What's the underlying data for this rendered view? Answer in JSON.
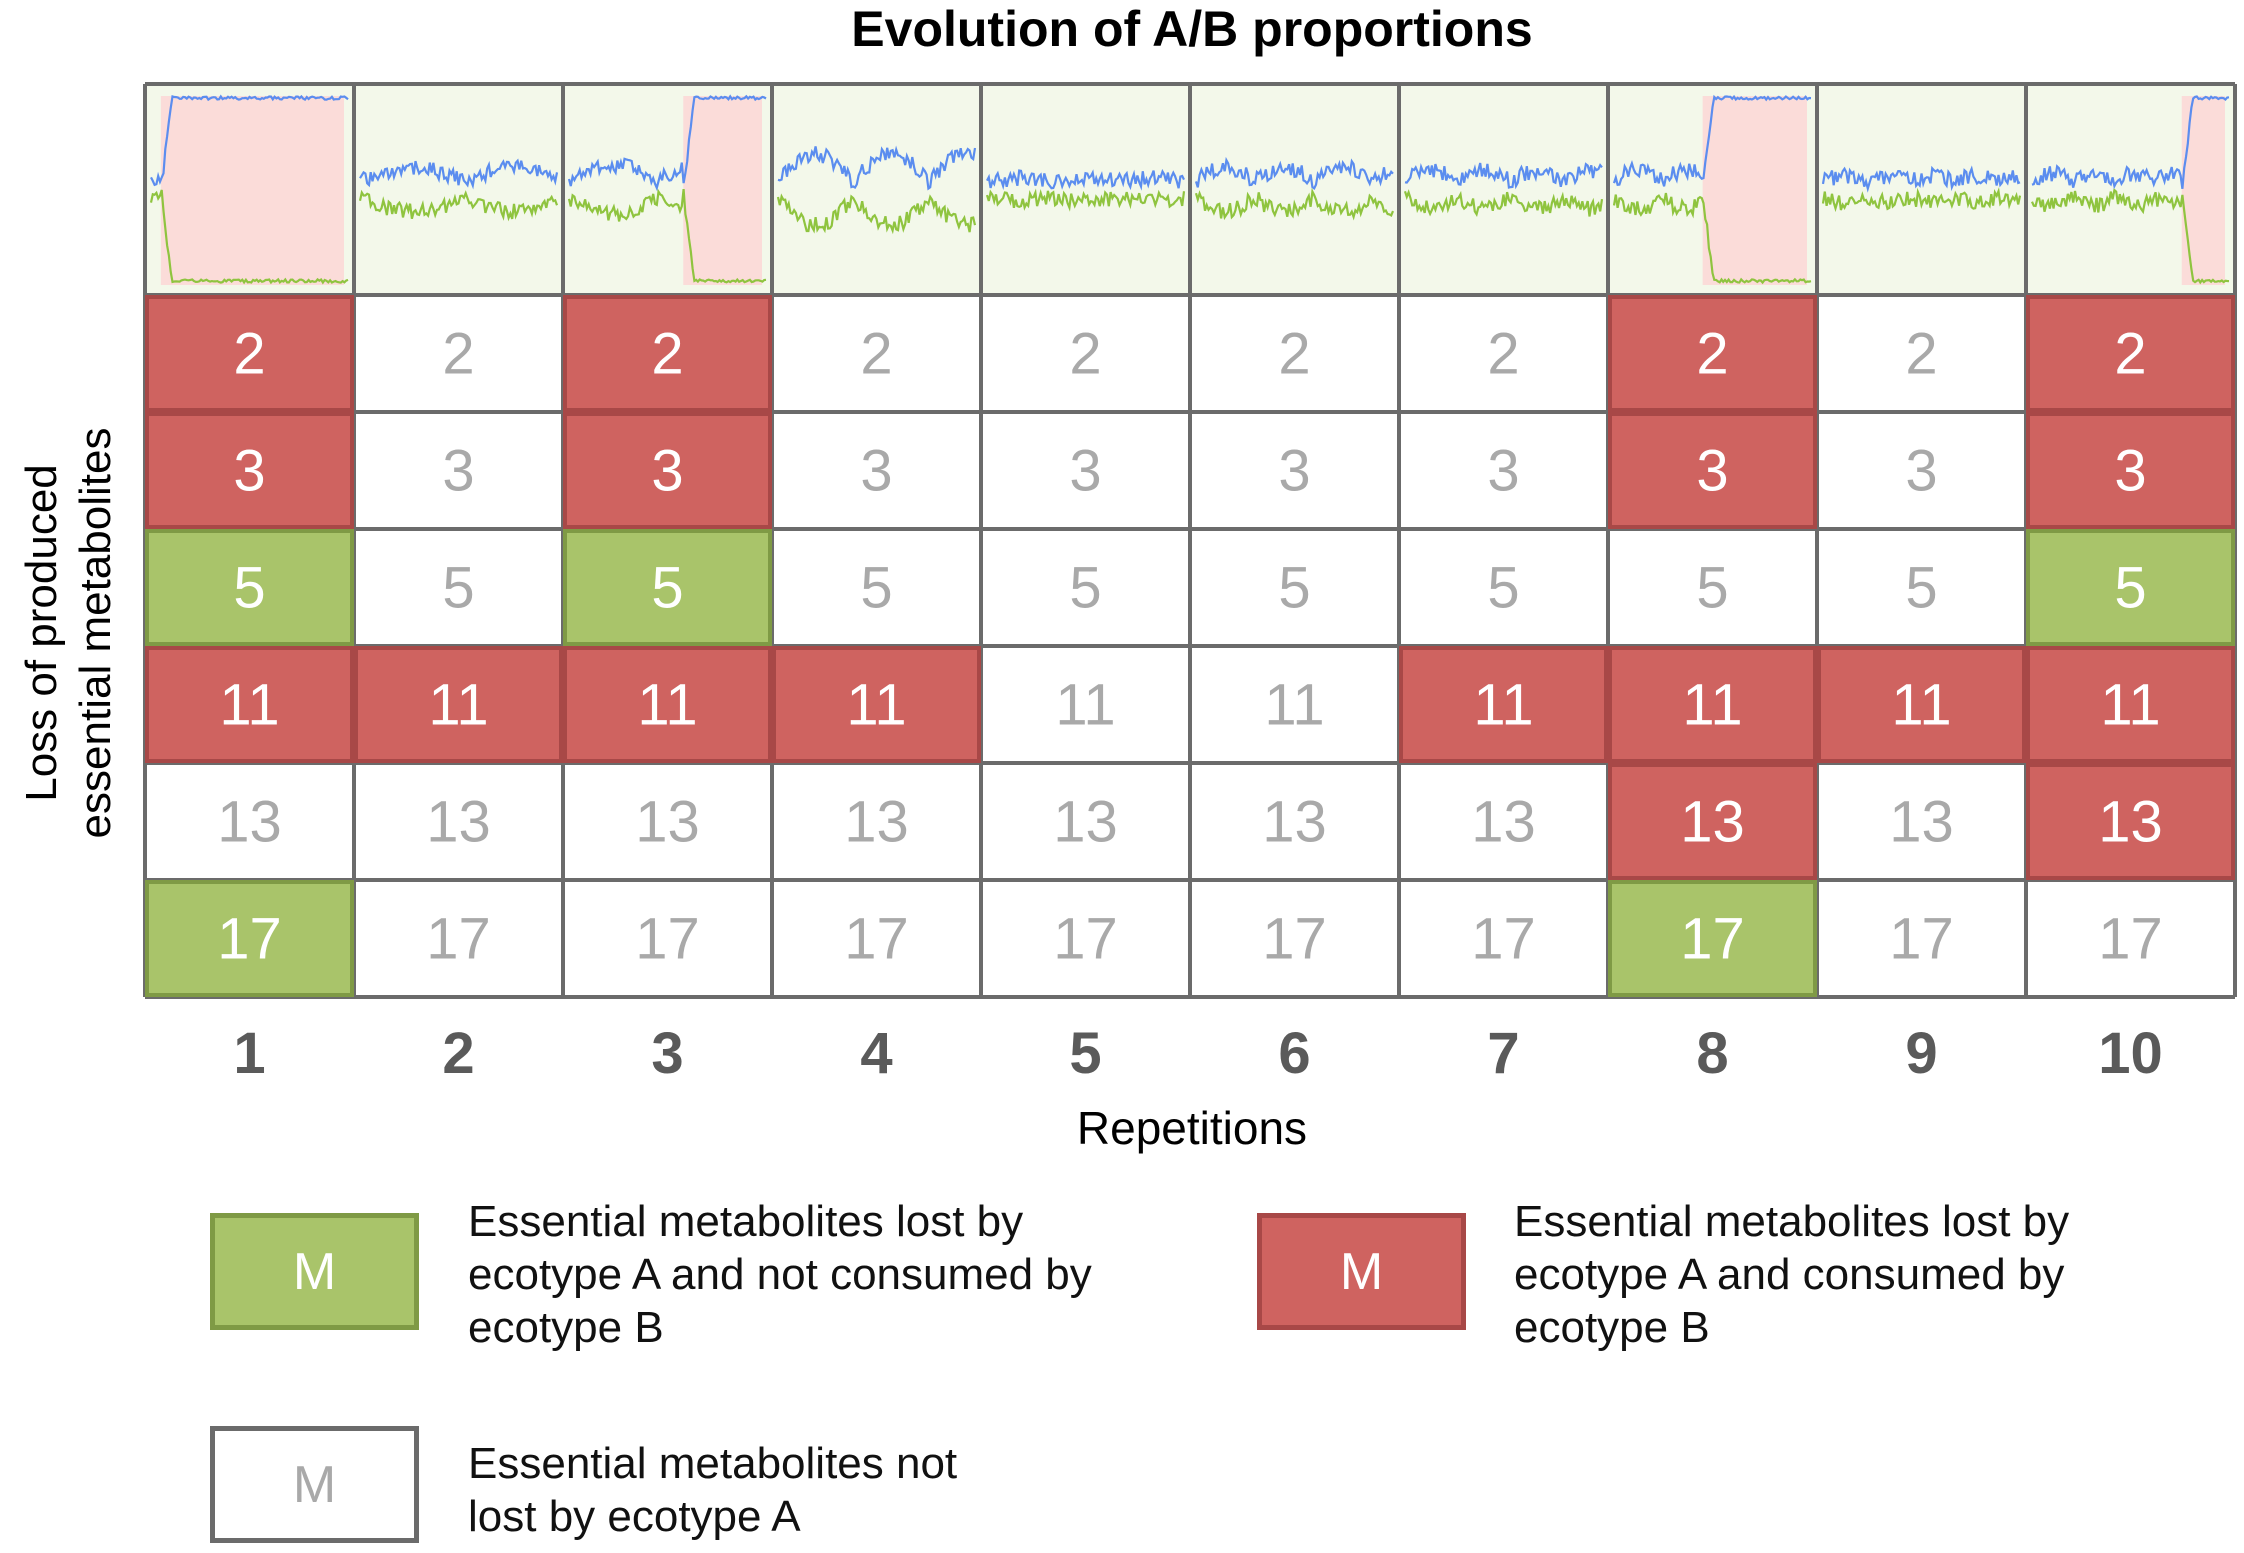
{
  "chart_data": {
    "type": "table",
    "title": "Evolution of A/B proportions",
    "xlabel": "Repetitions",
    "ylabel_line1": "Loss of produced",
    "ylabel_line2": "essential metabolites",
    "columns": [
      "1",
      "2",
      "3",
      "4",
      "5",
      "6",
      "7",
      "8",
      "9",
      "10"
    ],
    "rows": [
      "2",
      "3",
      "5",
      "11",
      "13",
      "17"
    ],
    "cells": [
      [
        "red",
        "white",
        "red",
        "white",
        "white",
        "white",
        "white",
        "red",
        "white",
        "red"
      ],
      [
        "red",
        "white",
        "red",
        "white",
        "white",
        "white",
        "white",
        "red",
        "white",
        "red"
      ],
      [
        "green",
        "white",
        "green",
        "white",
        "white",
        "white",
        "white",
        "white",
        "white",
        "green"
      ],
      [
        "red",
        "red",
        "red",
        "red",
        "white",
        "white",
        "red",
        "red",
        "red",
        "red"
      ],
      [
        "white",
        "white",
        "white",
        "white",
        "white",
        "white",
        "white",
        "red",
        "white",
        "red"
      ],
      [
        "green",
        "white",
        "white",
        "white",
        "white",
        "white",
        "white",
        "green",
        "white",
        "white"
      ]
    ],
    "thumbnails": {
      "series": [
        {
          "color": "#5b8def"
        },
        {
          "color": "#8fc43f"
        }
      ],
      "takeover_start": [
        0.05,
        null,
        0.58,
        null,
        null,
        null,
        null,
        0.45,
        null,
        0.76
      ],
      "oscillation": [
        0,
        0.25,
        0.3,
        0.5,
        0.06,
        0.25,
        0.2,
        0.2,
        0.1,
        0.15
      ]
    }
  },
  "colors": {
    "red": "#cf6360",
    "red_border": "#a84847",
    "green": "#a9c46a",
    "green_border": "#7f9a45",
    "white_text": "#a9a9a9",
    "grid": "#6b6b6b",
    "thumb_bg": "#f3f8ea",
    "takeover_bg": "#fbdcd9",
    "col_label": "#5a5a5a"
  },
  "legend": {
    "green": {
      "symbol": "M",
      "text": [
        "Essential metabolites lost by",
        "ecotype A and not consumed by",
        "ecotype B"
      ]
    },
    "red": {
      "symbol": "M",
      "text": [
        "Essential metabolites lost by",
        "ecotype A and consumed by",
        "ecotype B"
      ]
    },
    "white": {
      "symbol": "M",
      "text": [
        "Essential metabolites not",
        "lost by ecotype A"
      ]
    }
  }
}
